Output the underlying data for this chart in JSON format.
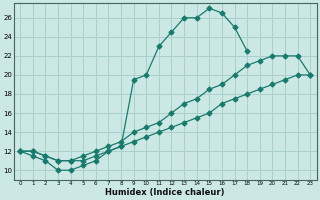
{
  "xlabel": "Humidex (Indice chaleur)",
  "bg_color": "#cce8e4",
  "grid_color": "#aad0cc",
  "line_color": "#1a7a6e",
  "xlim": [
    -0.5,
    23.5
  ],
  "ylim": [
    9.0,
    27.5
  ],
  "xticks": [
    0,
    1,
    2,
    3,
    4,
    5,
    6,
    7,
    8,
    9,
    10,
    11,
    12,
    13,
    14,
    15,
    16,
    17,
    18,
    19,
    20,
    21,
    22,
    23
  ],
  "yticks": [
    10,
    12,
    14,
    16,
    18,
    20,
    22,
    24,
    26
  ],
  "line1_x": [
    0,
    1,
    2,
    3,
    4,
    5,
    6,
    7,
    8,
    9,
    10,
    11,
    12,
    13,
    14,
    15,
    16,
    17,
    18
  ],
  "line1_y": [
    12,
    11.5,
    11,
    10,
    10,
    10.5,
    11,
    12,
    12.5,
    19.5,
    20,
    23,
    24.5,
    26,
    26,
    27,
    26.5,
    25,
    22.5
  ],
  "line2_x": [
    0,
    1,
    2,
    3,
    4,
    5,
    6,
    7,
    8,
    9,
    10,
    11,
    12,
    13,
    14,
    15,
    16,
    17,
    18,
    19,
    20,
    21,
    22,
    23
  ],
  "line2_y": [
    12,
    12,
    11.5,
    11,
    11,
    11,
    11.5,
    12,
    12.5,
    13,
    13.5,
    14,
    14.5,
    15,
    15.5,
    16,
    17,
    17.5,
    18,
    18.5,
    19,
    19.5,
    20,
    20
  ],
  "line3_x": [
    0,
    1,
    2,
    3,
    4,
    5,
    6,
    7,
    8,
    9,
    10,
    11,
    12,
    13,
    14,
    15,
    16,
    17,
    18,
    19,
    20,
    21,
    22,
    23
  ],
  "line3_y": [
    12,
    12,
    11.5,
    11,
    11,
    11.5,
    12,
    12.5,
    13,
    14,
    14.5,
    15,
    16,
    17,
    17.5,
    18.5,
    19,
    20,
    21,
    21.5,
    22,
    22,
    22,
    20
  ]
}
